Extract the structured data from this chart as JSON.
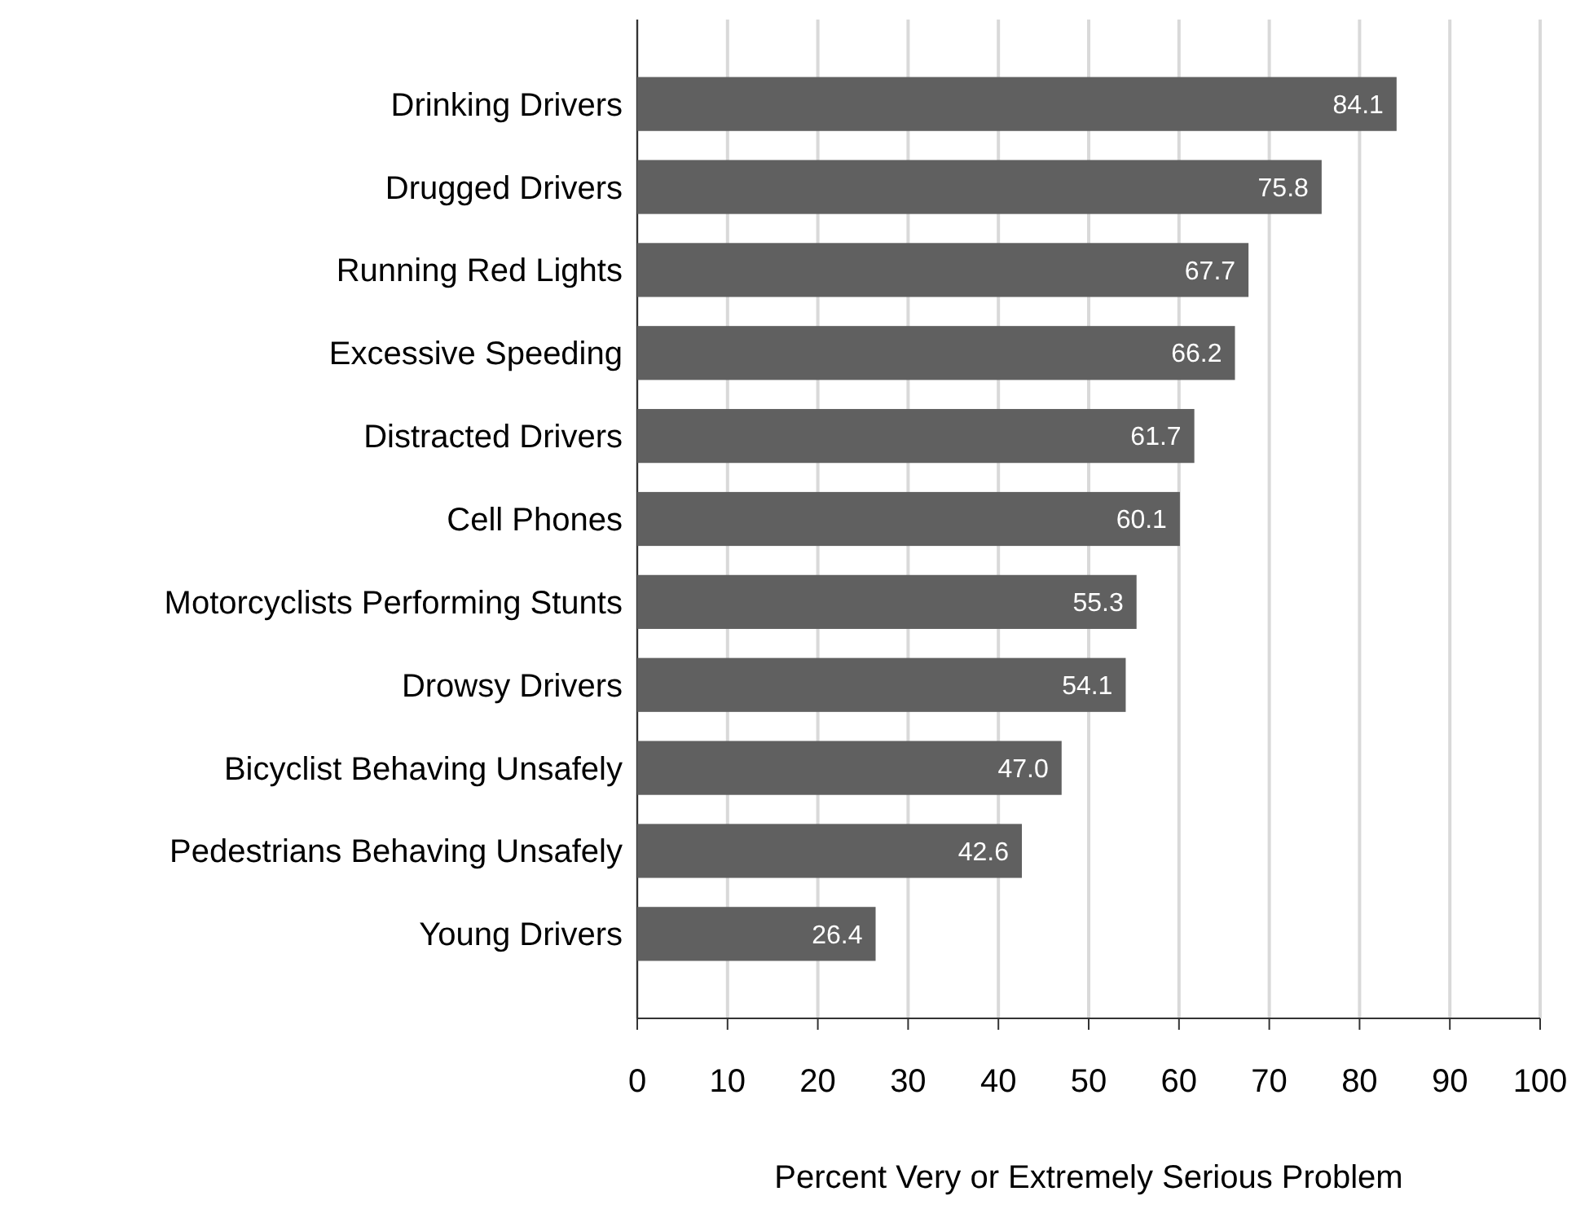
{
  "chart_data": {
    "type": "bar",
    "orientation": "horizontal",
    "xlabel": "Percent Very or Extremely Serious Problem",
    "categories": [
      "Drinking Drivers",
      "Drugged Drivers",
      "Running Red Lights",
      "Excessive Speeding",
      "Distracted Drivers",
      "Cell Phones",
      "Motorcyclists Performing Stunts",
      "Drowsy Drivers",
      "Bicyclist Behaving Unsafely",
      "Pedestrians Behaving Unsafely",
      "Young Drivers"
    ],
    "values": [
      84.1,
      75.8,
      67.7,
      66.2,
      61.7,
      60.1,
      55.3,
      54.1,
      47.0,
      42.6,
      26.4
    ],
    "value_labels": [
      "84.1",
      "75.8",
      "67.7",
      "66.2",
      "61.7",
      "60.1",
      "55.3",
      "54.1",
      "47.0",
      "42.6",
      "26.4"
    ],
    "color": "#606060",
    "xlim": [
      0,
      100
    ],
    "xticks": [
      0,
      10,
      20,
      30,
      40,
      50,
      60,
      70,
      80,
      90,
      100
    ],
    "grid": "x"
  }
}
